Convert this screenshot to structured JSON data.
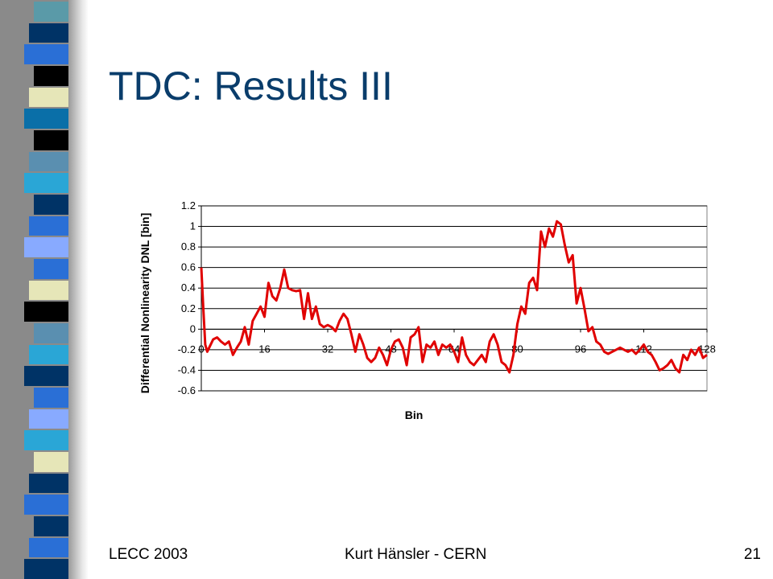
{
  "slide": {
    "title": "TDC: Results III",
    "footer_left": "LECC 2003",
    "footer_center": "Kurt Hänsler - CERN",
    "footer_right": "21"
  },
  "colors": {
    "title": "#0a3d6b",
    "series": "#e00000",
    "sidebar_blocks": [
      "#5a9aa8",
      "#003366",
      "#2a6fd6",
      "#000000",
      "#e6e6b8",
      "#0a6fa8",
      "#000000",
      "#5a8fb0",
      "#2aa6d6",
      "#003366",
      "#2a6fd6",
      "#88aaff",
      "#2a6fd6",
      "#e6e6b8",
      "#000000",
      "#5a8fb0",
      "#2aa6d6",
      "#003366",
      "#2a6fd6",
      "#88aaff",
      "#2aa6d6",
      "#e6e6b8",
      "#003366",
      "#2a6fd6",
      "#003366",
      "#2a6fd6",
      "#003366"
    ]
  },
  "chart_data": {
    "type": "line",
    "title": "",
    "xlabel": "Bin",
    "ylabel": "Differential Nonlinearity DNL  [bin]",
    "xlim": [
      0,
      128
    ],
    "ylim": [
      -0.6,
      1.2
    ],
    "x_ticks": [
      "0",
      "16",
      "32",
      "48",
      "64",
      "80",
      "96",
      "112",
      "128"
    ],
    "y_ticks": [
      "1.2",
      "1",
      "0.8",
      "0.6",
      "0.4",
      "0.2",
      "0",
      "-0.2",
      "-0.4",
      "-0.6"
    ],
    "grid": "horizontal",
    "legend": "none",
    "series": [
      {
        "color": "#e00000",
        "x": [
          0,
          0.5,
          1,
          1.5,
          2,
          3,
          4,
          5,
          6,
          7,
          8,
          9,
          10,
          11,
          12,
          13,
          14,
          15,
          16,
          17,
          18,
          19,
          20,
          21,
          22,
          23,
          24,
          25,
          26,
          27,
          28,
          29,
          30,
          31,
          32,
          33,
          34,
          35,
          36,
          37,
          38,
          39,
          40,
          41,
          42,
          43,
          44,
          45,
          46,
          47,
          48,
          49,
          50,
          51,
          52,
          53,
          54,
          55,
          56,
          57,
          58,
          59,
          60,
          61,
          62,
          63,
          64,
          65,
          66,
          67,
          68,
          69,
          70,
          71,
          72,
          73,
          74,
          75,
          76,
          77,
          78,
          79,
          80,
          81,
          82,
          83,
          84,
          85,
          86,
          87,
          88,
          89,
          90,
          91,
          92,
          93,
          94,
          95,
          96,
          97,
          98,
          99,
          100,
          101,
          102,
          103,
          104,
          105,
          106,
          107,
          108,
          109,
          110,
          111,
          112,
          113,
          114,
          115,
          116,
          117,
          118,
          119,
          120,
          121,
          122,
          123,
          124,
          125,
          126,
          127,
          128
        ],
        "y": [
          0.6,
          0.2,
          -0.15,
          -0.22,
          -0.18,
          -0.1,
          -0.08,
          -0.12,
          -0.15,
          -0.12,
          -0.25,
          -0.18,
          -0.12,
          0.02,
          -0.15,
          0.08,
          0.15,
          0.22,
          0.12,
          0.45,
          0.32,
          0.28,
          0.4,
          0.58,
          0.4,
          0.38,
          0.37,
          0.38,
          0.1,
          0.35,
          0.1,
          0.22,
          0.05,
          0.02,
          0.04,
          0.02,
          -0.02,
          0.08,
          0.15,
          0.1,
          -0.05,
          -0.22,
          -0.05,
          -0.15,
          -0.28,
          -0.32,
          -0.28,
          -0.18,
          -0.25,
          -0.35,
          -0.2,
          -0.12,
          -0.1,
          -0.18,
          -0.35,
          -0.08,
          -0.05,
          0.02,
          -0.32,
          -0.15,
          -0.18,
          -0.12,
          -0.25,
          -0.15,
          -0.18,
          -0.15,
          -0.22,
          -0.32,
          -0.08,
          -0.25,
          -0.32,
          -0.35,
          -0.3,
          -0.25,
          -0.32,
          -0.12,
          -0.05,
          -0.15,
          -0.32,
          -0.35,
          -0.42,
          -0.25,
          0.05,
          0.22,
          0.15,
          0.45,
          0.5,
          0.38,
          0.95,
          0.8,
          0.98,
          0.9,
          1.05,
          1.02,
          0.82,
          0.65,
          0.72,
          0.25,
          0.4,
          0.2,
          -0.02,
          0.02,
          -0.12,
          -0.15,
          -0.22,
          -0.24,
          -0.22,
          -0.2,
          -0.18,
          -0.2,
          -0.22,
          -0.2,
          -0.24,
          -0.2,
          -0.15,
          -0.22,
          -0.25,
          -0.32,
          -0.4,
          -0.38,
          -0.35,
          -0.3,
          -0.38,
          -0.42,
          -0.25,
          -0.3,
          -0.2,
          -0.25,
          -0.18,
          -0.28,
          -0.25
        ]
      }
    ]
  }
}
